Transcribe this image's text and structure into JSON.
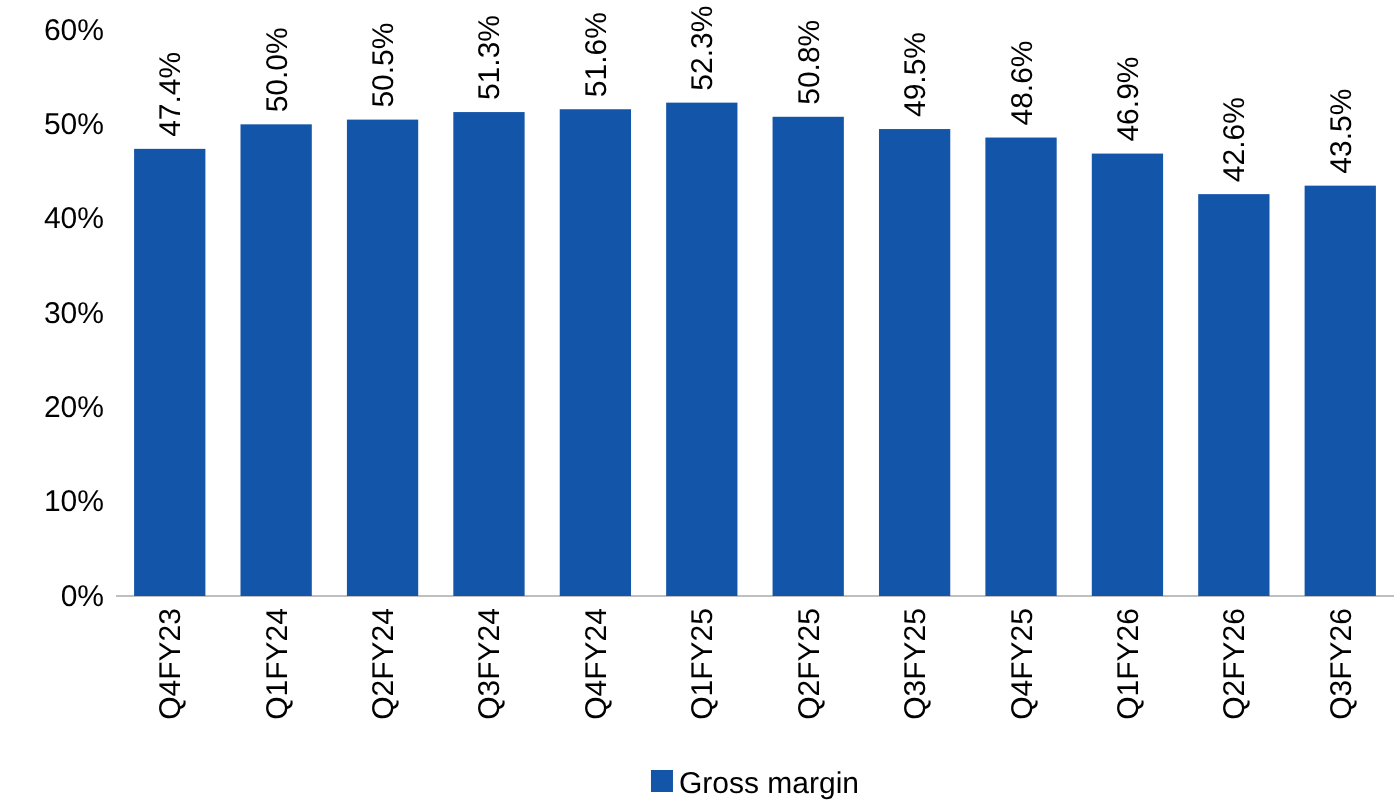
{
  "chart_data": {
    "type": "bar",
    "categories": [
      "Q4FY23",
      "Q1FY24",
      "Q2FY24",
      "Q3FY24",
      "Q4FY24",
      "Q1FY25",
      "Q2FY25",
      "Q3FY25",
      "Q4FY25",
      "Q1FY26",
      "Q2FY26",
      "Q3FY26"
    ],
    "series": [
      {
        "name": "Gross margin",
        "color": "#1355a8",
        "values": [
          47.4,
          50.0,
          50.5,
          51.3,
          51.6,
          52.3,
          50.8,
          49.5,
          48.6,
          46.9,
          42.6,
          43.5
        ],
        "value_labels": [
          "47.4%",
          "50.0%",
          "50.5%",
          "51.3%",
          "51.6%",
          "52.3%",
          "50.8%",
          "49.5%",
          "48.6%",
          "46.9%",
          "42.6%",
          "43.5%"
        ]
      }
    ],
    "ylim": [
      0,
      60
    ],
    "yticks": [
      {
        "value": 0,
        "label": "0%"
      },
      {
        "value": 10,
        "label": "10%"
      },
      {
        "value": 20,
        "label": "20%"
      },
      {
        "value": 30,
        "label": "30%"
      },
      {
        "value": 40,
        "label": "40%"
      },
      {
        "value": 50,
        "label": "50%"
      },
      {
        "value": 60,
        "label": "60%"
      }
    ],
    "legend": "bottom"
  }
}
